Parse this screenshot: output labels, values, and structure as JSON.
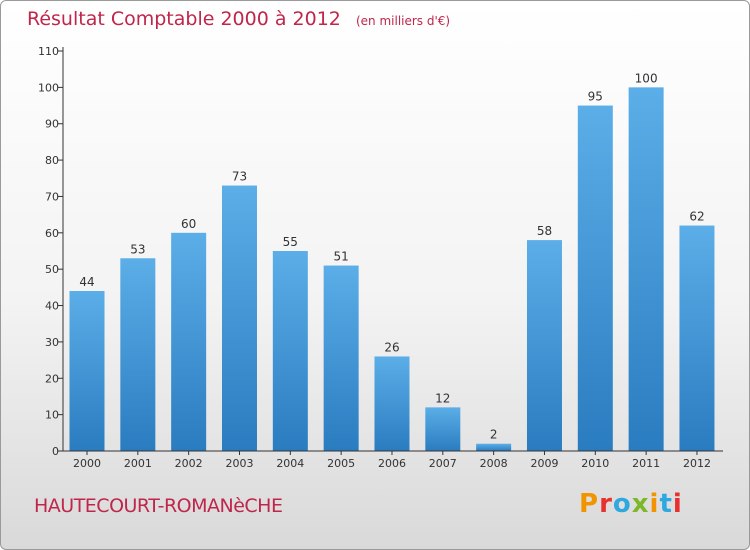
{
  "header": {
    "title": "Résultat Comptable 2000 à 2012",
    "subtitle": "(en milliers d'€)"
  },
  "footer": {
    "commune": "HAUTECOURT-ROMANèCHE",
    "logo_text": "Proxiti",
    "logo_colors": [
      "#f29400",
      "#e8312f",
      "#2fa8e0",
      "#7cb829",
      "#f29400",
      "#2fa8e0",
      "#e8312f"
    ]
  },
  "colors": {
    "title": "#c0254a",
    "bar_top": "#5caee8",
    "bar_bottom": "#2a7cc0",
    "axis": "#333333"
  },
  "chart_data": {
    "type": "bar",
    "title": "Résultat Comptable 2000 à 2012",
    "xlabel": "",
    "ylabel": "",
    "ylim": [
      0,
      110
    ],
    "yticks": [
      0,
      10,
      20,
      30,
      40,
      50,
      60,
      70,
      80,
      90,
      100,
      110
    ],
    "grid": false,
    "categories": [
      "2000",
      "2001",
      "2002",
      "2003",
      "2004",
      "2005",
      "2006",
      "2007",
      "2008",
      "2009",
      "2010",
      "2011",
      "2012"
    ],
    "values": [
      44,
      53,
      60,
      73,
      55,
      51,
      26,
      12,
      2,
      58,
      95,
      100,
      62
    ]
  }
}
